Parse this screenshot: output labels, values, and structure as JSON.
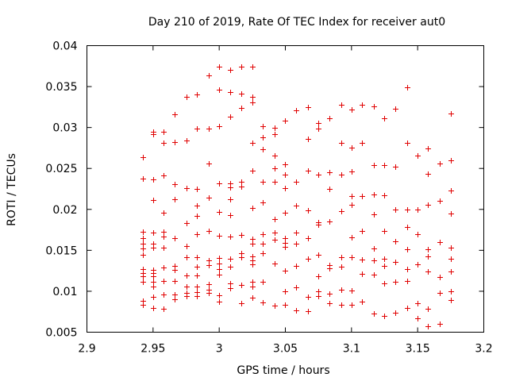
{
  "chart_data": {
    "type": "scatter",
    "title": "Day 210 of 2019, Rate Of TEC Index for receiver aut0",
    "xlabel": "GPS time / hours",
    "ylabel": "ROTI / TECUs",
    "xlim": [
      2.9,
      3.2
    ],
    "ylim": [
      0.005,
      0.04
    ],
    "xticks": [
      2.9,
      2.95,
      3.0,
      3.05,
      3.1,
      3.15,
      3.2
    ],
    "xtick_labels": [
      "2.9",
      "2.95",
      "3",
      "3.05",
      "3.1",
      "3.15",
      "3.2"
    ],
    "yticks": [
      0.005,
      0.01,
      0.015,
      0.02,
      0.025,
      0.03,
      0.035,
      0.04
    ],
    "ytick_labels": [
      "0.005",
      "0.01",
      "0.015",
      "0.02",
      "0.025",
      "0.03",
      "0.035",
      "0.04"
    ],
    "marker": "+",
    "marker_color": "#e00000",
    "grid": false,
    "series": [
      {
        "name": "ROTI",
        "points": [
          [
            2.942,
            0.0264
          ],
          [
            2.942,
            0.0238
          ],
          [
            2.942,
            0.0173
          ],
          [
            2.942,
            0.0165
          ],
          [
            2.942,
            0.0158
          ],
          [
            2.942,
            0.0152
          ],
          [
            2.942,
            0.0145
          ],
          [
            2.942,
            0.0127
          ],
          [
            2.942,
            0.0122
          ],
          [
            2.942,
            0.0118
          ],
          [
            2.942,
            0.0112
          ],
          [
            2.942,
            0.0088
          ],
          [
            2.942,
            0.0083
          ],
          [
            2.95,
            0.0295
          ],
          [
            2.95,
            0.0292
          ],
          [
            2.95,
            0.0237
          ],
          [
            2.95,
            0.0211
          ],
          [
            2.95,
            0.0172
          ],
          [
            2.95,
            0.0158
          ],
          [
            2.95,
            0.0153
          ],
          [
            2.95,
            0.0126
          ],
          [
            2.95,
            0.0122
          ],
          [
            2.95,
            0.0118
          ],
          [
            2.95,
            0.0112
          ],
          [
            2.95,
            0.0106
          ],
          [
            2.95,
            0.0093
          ],
          [
            2.95,
            0.008
          ],
          [
            2.958,
            0.0295
          ],
          [
            2.958,
            0.0281
          ],
          [
            2.958,
            0.0241
          ],
          [
            2.958,
            0.0196
          ],
          [
            2.958,
            0.0173
          ],
          [
            2.958,
            0.0167
          ],
          [
            2.958,
            0.0153
          ],
          [
            2.958,
            0.0129
          ],
          [
            2.958,
            0.0113
          ],
          [
            2.958,
            0.0096
          ],
          [
            2.958,
            0.0079
          ],
          [
            2.966,
            0.0316
          ],
          [
            2.966,
            0.0282
          ],
          [
            2.966,
            0.0231
          ],
          [
            2.966,
            0.0212
          ],
          [
            2.966,
            0.0165
          ],
          [
            2.966,
            0.0131
          ],
          [
            2.966,
            0.0126
          ],
          [
            2.966,
            0.0113
          ],
          [
            2.966,
            0.0096
          ],
          [
            2.966,
            0.009
          ],
          [
            2.975,
            0.0337
          ],
          [
            2.975,
            0.0284
          ],
          [
            2.975,
            0.0226
          ],
          [
            2.975,
            0.0183
          ],
          [
            2.975,
            0.0155
          ],
          [
            2.975,
            0.0142
          ],
          [
            2.975,
            0.0119
          ],
          [
            2.975,
            0.0106
          ],
          [
            2.975,
            0.0098
          ],
          [
            2.975,
            0.0094
          ],
          [
            2.983,
            0.034
          ],
          [
            2.983,
            0.0299
          ],
          [
            2.983,
            0.0225
          ],
          [
            2.983,
            0.0205
          ],
          [
            2.983,
            0.0192
          ],
          [
            2.983,
            0.017
          ],
          [
            2.983,
            0.0142
          ],
          [
            2.983,
            0.013
          ],
          [
            2.983,
            0.0119
          ],
          [
            2.983,
            0.0106
          ],
          [
            2.983,
            0.0099
          ],
          [
            2.983,
            0.0094
          ],
          [
            2.992,
            0.0364
          ],
          [
            2.992,
            0.0299
          ],
          [
            2.992,
            0.0256
          ],
          [
            2.992,
            0.0214
          ],
          [
            2.992,
            0.0174
          ],
          [
            2.992,
            0.0138
          ],
          [
            2.992,
            0.0132
          ],
          [
            2.992,
            0.0109
          ],
          [
            2.992,
            0.0102
          ],
          [
            2.992,
            0.0098
          ],
          [
            3.0,
            0.0374
          ],
          [
            3.0,
            0.0346
          ],
          [
            3.0,
            0.0302
          ],
          [
            3.0,
            0.0232
          ],
          [
            3.0,
            0.0197
          ],
          [
            3.0,
            0.0168
          ],
          [
            3.0,
            0.0141
          ],
          [
            3.0,
            0.0134
          ],
          [
            3.0,
            0.0127
          ],
          [
            3.0,
            0.012
          ],
          [
            3.0,
            0.0095
          ],
          [
            3.0,
            0.0087
          ],
          [
            3.008,
            0.037
          ],
          [
            3.008,
            0.0343
          ],
          [
            3.008,
            0.0313
          ],
          [
            3.008,
            0.0232
          ],
          [
            3.008,
            0.0227
          ],
          [
            3.008,
            0.0212
          ],
          [
            3.008,
            0.0193
          ],
          [
            3.008,
            0.0167
          ],
          [
            3.008,
            0.014
          ],
          [
            3.008,
            0.013
          ],
          [
            3.008,
            0.011
          ],
          [
            3.008,
            0.0104
          ],
          [
            3.017,
            0.0374
          ],
          [
            3.017,
            0.0341
          ],
          [
            3.017,
            0.0324
          ],
          [
            3.017,
            0.0234
          ],
          [
            3.017,
            0.0228
          ],
          [
            3.017,
            0.0169
          ],
          [
            3.017,
            0.0146
          ],
          [
            3.017,
            0.0142
          ],
          [
            3.017,
            0.0108
          ],
          [
            3.017,
            0.0085
          ],
          [
            3.025,
            0.0374
          ],
          [
            3.025,
            0.0337
          ],
          [
            3.025,
            0.0331
          ],
          [
            3.025,
            0.0281
          ],
          [
            3.025,
            0.0247
          ],
          [
            3.025,
            0.0202
          ],
          [
            3.025,
            0.0164
          ],
          [
            3.025,
            0.0158
          ],
          [
            3.025,
            0.0143
          ],
          [
            3.025,
            0.0138
          ],
          [
            3.025,
            0.0133
          ],
          [
            3.025,
            0.0112
          ],
          [
            3.025,
            0.0106
          ],
          [
            3.025,
            0.0092
          ],
          [
            3.033,
            0.0302
          ],
          [
            3.033,
            0.0288
          ],
          [
            3.033,
            0.0273
          ],
          [
            3.033,
            0.0234
          ],
          [
            3.033,
            0.0209
          ],
          [
            3.033,
            0.017
          ],
          [
            3.033,
            0.0158
          ],
          [
            3.033,
            0.0146
          ],
          [
            3.033,
            0.0112
          ],
          [
            3.033,
            0.0086
          ],
          [
            3.042,
            0.03
          ],
          [
            3.042,
            0.0292
          ],
          [
            3.042,
            0.0266
          ],
          [
            3.042,
            0.025
          ],
          [
            3.042,
            0.0234
          ],
          [
            3.042,
            0.0188
          ],
          [
            3.042,
            0.0172
          ],
          [
            3.042,
            0.0163
          ],
          [
            3.042,
            0.0134
          ],
          [
            3.042,
            0.0082
          ],
          [
            3.05,
            0.0308
          ],
          [
            3.05,
            0.0255
          ],
          [
            3.05,
            0.0242
          ],
          [
            3.05,
            0.0226
          ],
          [
            3.05,
            0.0196
          ],
          [
            3.05,
            0.0165
          ],
          [
            3.05,
            0.0159
          ],
          [
            3.05,
            0.0154
          ],
          [
            3.05,
            0.0125
          ],
          [
            3.05,
            0.01
          ],
          [
            3.05,
            0.0083
          ],
          [
            3.058,
            0.0321
          ],
          [
            3.058,
            0.0234
          ],
          [
            3.058,
            0.0205
          ],
          [
            3.058,
            0.0172
          ],
          [
            3.058,
            0.0158
          ],
          [
            3.058,
            0.0131
          ],
          [
            3.058,
            0.0105
          ],
          [
            3.058,
            0.0077
          ],
          [
            3.067,
            0.0325
          ],
          [
            3.067,
            0.0286
          ],
          [
            3.067,
            0.0247
          ],
          [
            3.067,
            0.0199
          ],
          [
            3.067,
            0.0165
          ],
          [
            3.067,
            0.014
          ],
          [
            3.067,
            0.0093
          ],
          [
            3.067,
            0.0076
          ],
          [
            3.075,
            0.0305
          ],
          [
            3.075,
            0.0299
          ],
          [
            3.075,
            0.0242
          ],
          [
            3.075,
            0.0184
          ],
          [
            3.075,
            0.0181
          ],
          [
            3.075,
            0.0145
          ],
          [
            3.075,
            0.0118
          ],
          [
            3.075,
            0.01
          ],
          [
            3.075,
            0.0094
          ],
          [
            3.083,
            0.0311
          ],
          [
            3.083,
            0.0245
          ],
          [
            3.083,
            0.0225
          ],
          [
            3.083,
            0.0185
          ],
          [
            3.083,
            0.0132
          ],
          [
            3.083,
            0.0128
          ],
          [
            3.083,
            0.0097
          ],
          [
            3.083,
            0.0085
          ],
          [
            3.092,
            0.0328
          ],
          [
            3.092,
            0.0281
          ],
          [
            3.092,
            0.0242
          ],
          [
            3.092,
            0.0198
          ],
          [
            3.092,
            0.0142
          ],
          [
            3.092,
            0.013
          ],
          [
            3.092,
            0.0102
          ],
          [
            3.092,
            0.0083
          ],
          [
            3.1,
            0.0322
          ],
          [
            3.1,
            0.0275
          ],
          [
            3.1,
            0.0246
          ],
          [
            3.1,
            0.0216
          ],
          [
            3.1,
            0.0206
          ],
          [
            3.1,
            0.0166
          ],
          [
            3.1,
            0.0142
          ],
          [
            3.1,
            0.0101
          ],
          [
            3.1,
            0.0083
          ],
          [
            3.108,
            0.0328
          ],
          [
            3.108,
            0.0281
          ],
          [
            3.108,
            0.0216
          ],
          [
            3.108,
            0.0174
          ],
          [
            3.108,
            0.0139
          ],
          [
            3.108,
            0.0121
          ],
          [
            3.108,
            0.0087
          ],
          [
            3.117,
            0.0326
          ],
          [
            3.117,
            0.0254
          ],
          [
            3.117,
            0.0218
          ],
          [
            3.117,
            0.0194
          ],
          [
            3.117,
            0.0152
          ],
          [
            3.117,
            0.0138
          ],
          [
            3.117,
            0.012
          ],
          [
            3.117,
            0.0073
          ],
          [
            3.125,
            0.0311
          ],
          [
            3.125,
            0.0254
          ],
          [
            3.125,
            0.0217
          ],
          [
            3.125,
            0.0174
          ],
          [
            3.125,
            0.014
          ],
          [
            3.125,
            0.0131
          ],
          [
            3.125,
            0.011
          ],
          [
            3.125,
            0.007
          ],
          [
            3.133,
            0.0323
          ],
          [
            3.133,
            0.0252
          ],
          [
            3.133,
            0.02
          ],
          [
            3.133,
            0.0161
          ],
          [
            3.133,
            0.0136
          ],
          [
            3.133,
            0.0112
          ],
          [
            3.133,
            0.0074
          ],
          [
            3.142,
            0.0349
          ],
          [
            3.142,
            0.0281
          ],
          [
            3.142,
            0.02
          ],
          [
            3.142,
            0.0178
          ],
          [
            3.142,
            0.0151
          ],
          [
            3.142,
            0.0127
          ],
          [
            3.142,
            0.0113
          ],
          [
            3.142,
            0.008
          ],
          [
            3.15,
            0.0266
          ],
          [
            3.15,
            0.02
          ],
          [
            3.15,
            0.017
          ],
          [
            3.15,
            0.0133
          ],
          [
            3.15,
            0.0085
          ],
          [
            3.15,
            0.0067
          ],
          [
            3.158,
            0.0274
          ],
          [
            3.158,
            0.0243
          ],
          [
            3.158,
            0.0206
          ],
          [
            3.158,
            0.0151
          ],
          [
            3.158,
            0.0143
          ],
          [
            3.158,
            0.0124
          ],
          [
            3.158,
            0.0079
          ],
          [
            3.158,
            0.0057
          ],
          [
            3.167,
            0.0256
          ],
          [
            3.167,
            0.021
          ],
          [
            3.167,
            0.016
          ],
          [
            3.167,
            0.0117
          ],
          [
            3.167,
            0.0098
          ],
          [
            3.167,
            0.006
          ],
          [
            3.175,
            0.0317
          ],
          [
            3.175,
            0.026
          ],
          [
            3.175,
            0.0223
          ],
          [
            3.175,
            0.0195
          ],
          [
            3.175,
            0.0153
          ],
          [
            3.175,
            0.014
          ],
          [
            3.175,
            0.0124
          ],
          [
            3.175,
            0.01
          ],
          [
            3.175,
            0.0089
          ]
        ]
      }
    ]
  }
}
